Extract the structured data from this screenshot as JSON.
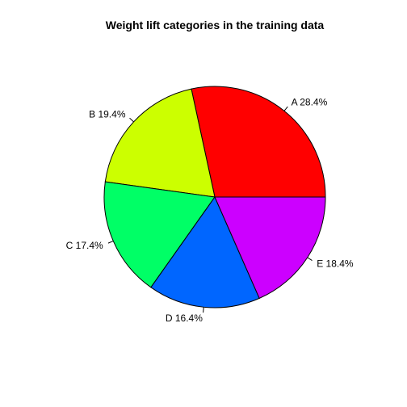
{
  "chart_data": {
    "type": "pie",
    "title": "Weight lift categories in the training data",
    "start_angle_deg": 0,
    "direction": "counterclockwise",
    "slices": [
      {
        "category": "A",
        "value": 28.4,
        "label": "A 28.4%",
        "color": "#FF0000"
      },
      {
        "category": "B",
        "value": 19.4,
        "label": "B 19.4%",
        "color": "#CCFF00"
      },
      {
        "category": "C",
        "value": 17.4,
        "label": "C 17.4%",
        "color": "#00FF66"
      },
      {
        "category": "D",
        "value": 16.4,
        "label": "D 16.4%",
        "color": "#0066FF"
      },
      {
        "category": "E",
        "value": 18.4,
        "label": "E 18.4%",
        "color": "#CC00FF"
      }
    ]
  }
}
